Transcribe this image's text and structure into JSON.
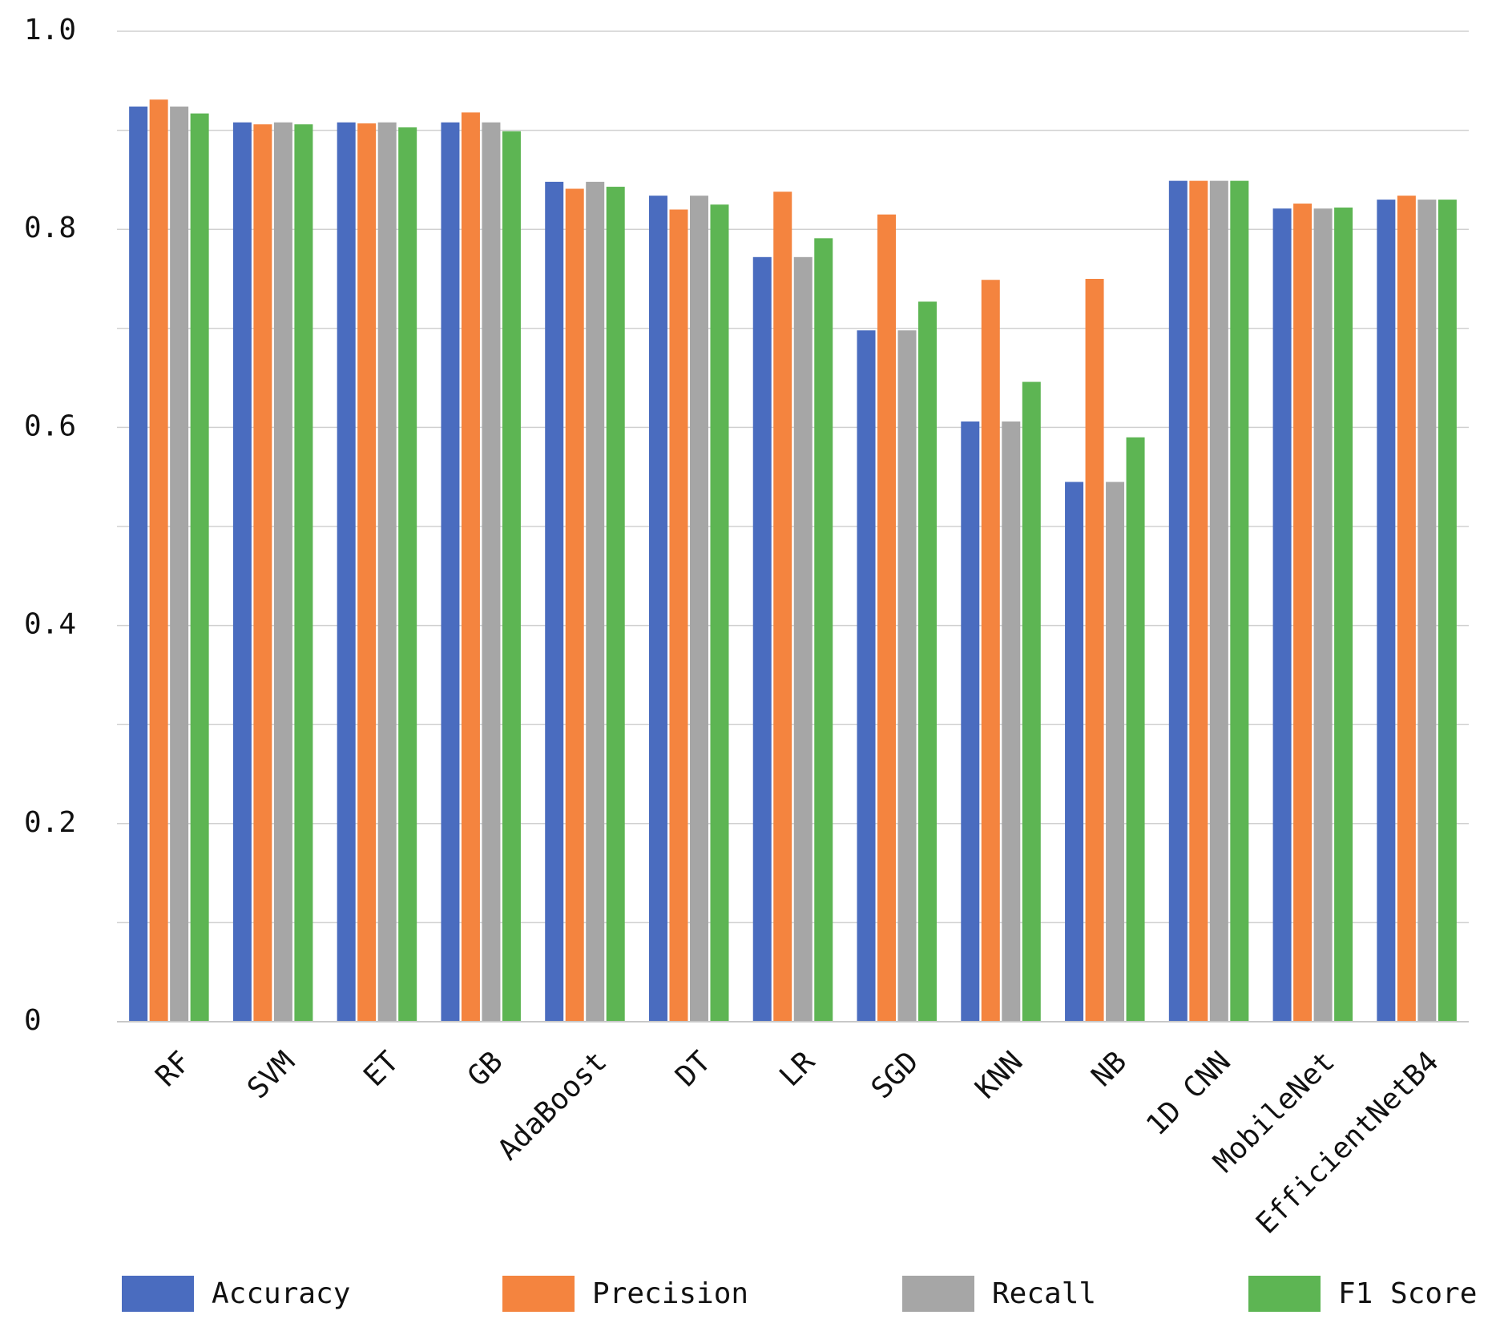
{
  "chart_data": {
    "type": "bar",
    "categories": [
      "RF",
      "SVM",
      "ET",
      "GB",
      "AdaBoost",
      "DT",
      "LR",
      "SGD",
      "KNN",
      "NB",
      "1D CNN",
      "MobileNet",
      "EfficientNetB4"
    ],
    "series": [
      {
        "name": "Accuracy",
        "color": "#4a6cbf",
        "values": [
          0.924,
          0.908,
          0.908,
          0.908,
          0.848,
          0.834,
          0.772,
          0.698,
          0.606,
          0.545,
          0.849,
          0.821,
          0.83
        ]
      },
      {
        "name": "Precision",
        "color": "#f4843f",
        "values": [
          0.931,
          0.906,
          0.907,
          0.918,
          0.841,
          0.82,
          0.838,
          0.815,
          0.749,
          0.75,
          0.849,
          0.826,
          0.834
        ]
      },
      {
        "name": "Recall",
        "color": "#a6a6a6",
        "values": [
          0.924,
          0.908,
          0.908,
          0.908,
          0.848,
          0.834,
          0.772,
          0.698,
          0.606,
          0.545,
          0.849,
          0.821,
          0.83
        ]
      },
      {
        "name": "F1 Score",
        "color": "#5db553",
        "values": [
          0.917,
          0.906,
          0.903,
          0.899,
          0.843,
          0.825,
          0.791,
          0.727,
          0.646,
          0.59,
          0.849,
          0.822,
          0.83
        ]
      }
    ],
    "ylim": [
      0,
      1
    ],
    "yticks": [
      0,
      0.2,
      0.4,
      0.6,
      0.8,
      {
        "value": 1,
        "label": "1.0"
      }
    ],
    "grid": true,
    "legend": "bottom"
  }
}
